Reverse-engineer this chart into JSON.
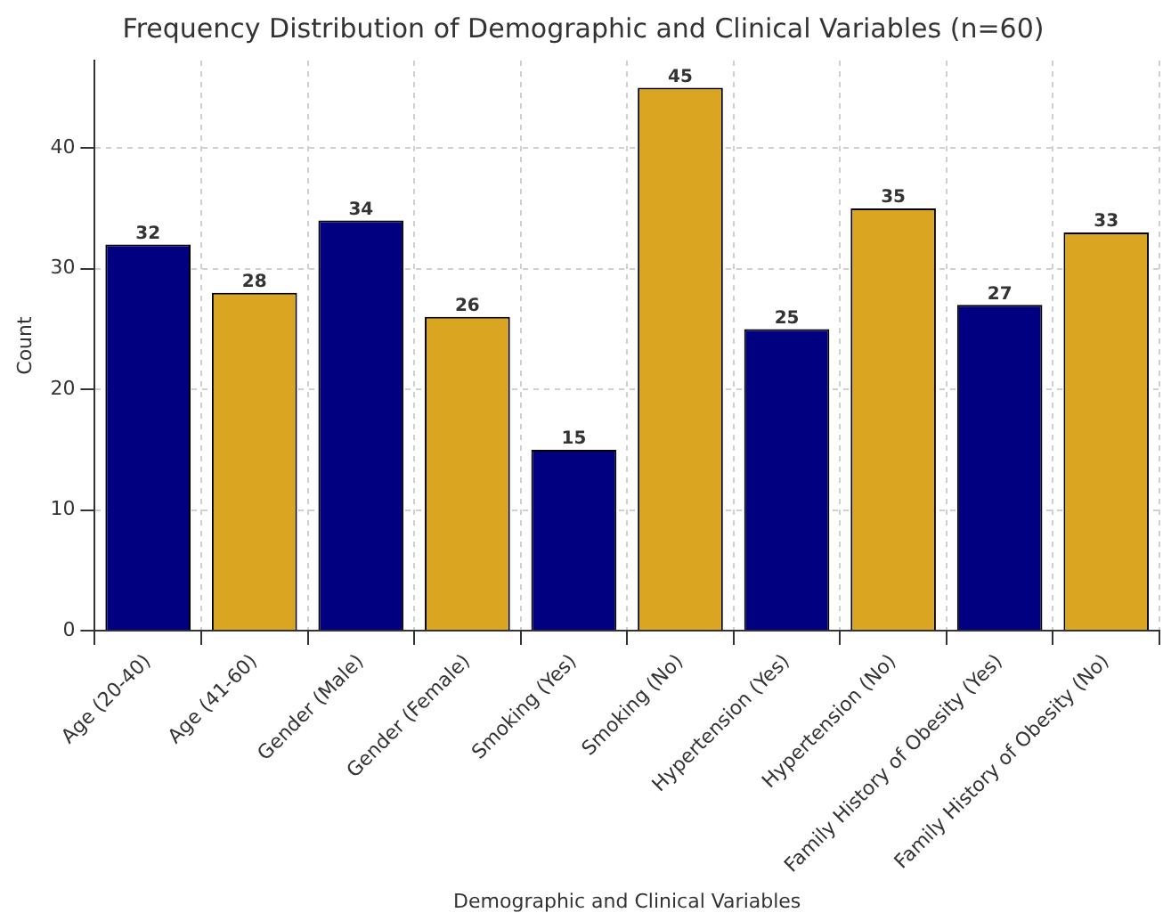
{
  "chart_data": {
    "type": "bar",
    "title": "Frequency Distribution of Demographic and Clinical Variables (n=60)",
    "xlabel": "Demographic and Clinical Variables",
    "ylabel": "Count",
    "categories": [
      "Age (20-40)",
      "Age (41-60)",
      "Gender (Male)",
      "Gender (Female)",
      "Smoking (Yes)",
      "Smoking (No)",
      "Hypertension (Yes)",
      "Hypertension (No)",
      "Family History of Obesity (Yes)",
      "Family History of Obesity (No)"
    ],
    "values": [
      32,
      28,
      34,
      26,
      15,
      45,
      25,
      35,
      27,
      33
    ],
    "colors": [
      "#000080",
      "#daa520",
      "#000080",
      "#daa520",
      "#000080",
      "#daa520",
      "#000080",
      "#daa520",
      "#000080",
      "#daa520"
    ],
    "ylim": [
      0,
      47.25
    ],
    "yticks": [
      0,
      10,
      20,
      30,
      40
    ],
    "grid": true,
    "data_labels": true
  }
}
